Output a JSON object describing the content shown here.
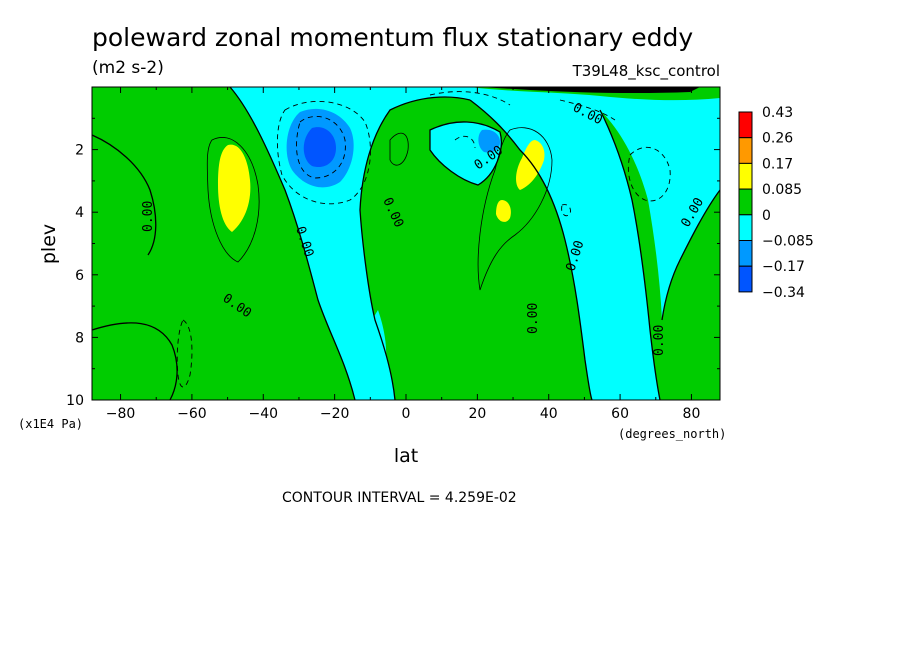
{
  "chart_data": {
    "type": "heatmap",
    "title": "poleward zonal momentum flux stationary eddy",
    "units": "(m2 s-2)",
    "run_label": "T39L48_ksc_control",
    "xlabel": "lat",
    "xunits": "(degrees_north)",
    "ylabel": "plev",
    "yunits": "(x1E4 Pa)",
    "xlim": [
      -88,
      88
    ],
    "ylim": [
      10,
      0
    ],
    "x_ticks": [
      -80,
      -60,
      -40,
      -20,
      0,
      20,
      40,
      60,
      80
    ],
    "x_tick_labels": [
      "-80",
      "-60",
      "-40",
      "-20",
      "0",
      "20",
      "40",
      "60",
      "80"
    ],
    "y_ticks": [
      2,
      4,
      6,
      8,
      10
    ],
    "y_tick_labels": [
      "2",
      "4",
      "6",
      "8",
      "10"
    ],
    "contour_interval_text": "CONTOUR INTERVAL = 4.259E-02",
    "contour_labels": [
      "0.00",
      "0.00",
      "0.00",
      "0.00",
      "0.00",
      "0.00",
      "0.00",
      "0.00",
      "0.00",
      "0.00",
      "0.00",
      "0.00"
    ],
    "legend": {
      "levels": [
        "0.43",
        "0.26",
        "0.17",
        "0.085",
        "0",
        "-0.085",
        "-0.17",
        "-0.34"
      ],
      "colors": [
        "#ff0000",
        "#ff9900",
        "#ffff00",
        "#00cc00",
        "#00ffff",
        "#0099ff",
        "#0055ff"
      ]
    },
    "fill_colors": {
      "positive_low": "#00cc00",
      "positive_mid": "#ffff00",
      "negative_low": "#00ffff",
      "negative_mid": "#0099ff",
      "negative_high": "#0055ff"
    }
  }
}
